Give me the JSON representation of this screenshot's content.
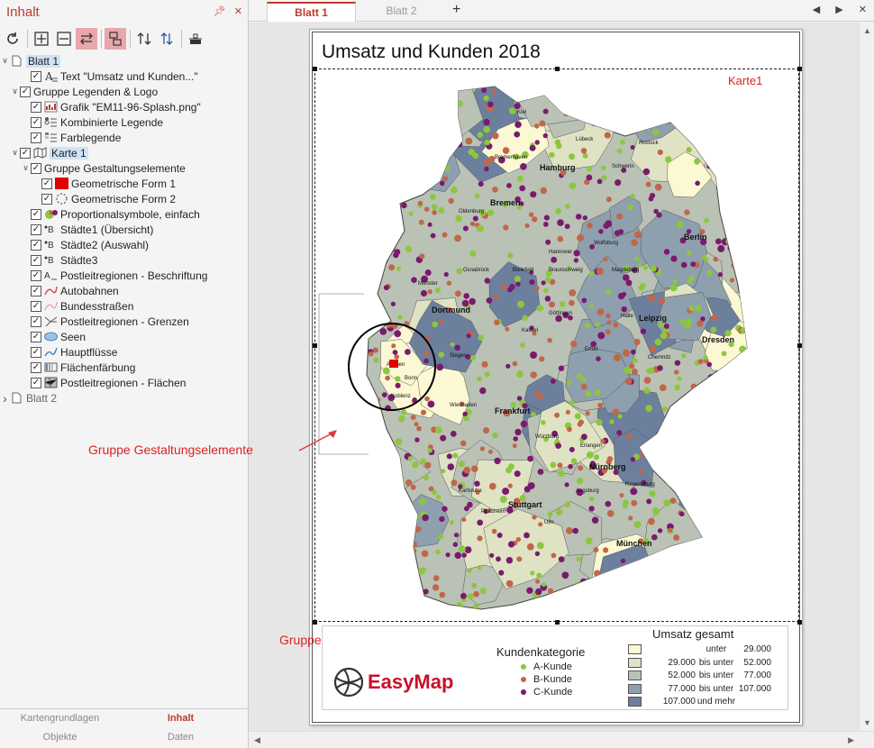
{
  "left_panel": {
    "title": "Inhalt",
    "pin_icon": "pin-icon",
    "close_icon": "close-icon",
    "tree": [
      {
        "label": "Blatt 1",
        "level": 0,
        "icon": "page-icon",
        "expanded": true,
        "selected": true
      },
      {
        "label": "Text \"Umsatz und Kunden...\"",
        "level": 2,
        "icon": "text-icon"
      },
      {
        "label": "Gruppe Legenden & Logo",
        "level": 1,
        "expanded": true
      },
      {
        "label": "Grafik \"EM11-96-Splash.png\"",
        "level": 2,
        "icon": "image-icon"
      },
      {
        "label": "Kombinierte Legende",
        "level": 2,
        "icon": "legend-icon"
      },
      {
        "label": "Farblegende",
        "level": 2,
        "icon": "color-legend-icon"
      },
      {
        "label": "Karte 1",
        "level": 1,
        "icon": "map-icon",
        "expanded": true,
        "selected": true
      },
      {
        "label": "Gruppe Gestaltungselemente",
        "level": 2,
        "expanded": true
      },
      {
        "label": "Geometrische Form 1",
        "level": 3,
        "icon": "red-rectangle-icon"
      },
      {
        "label": "Geometrische Form 2",
        "level": 3,
        "icon": "dashed-circle-icon"
      },
      {
        "label": "Proportionalsymbole, einfach",
        "level": 2,
        "icon": "pie-icon"
      },
      {
        "label": "Städte1 (Übersicht)",
        "level": 2,
        "icon": "city-label-icon"
      },
      {
        "label": "Städte2 (Auswahl)",
        "level": 2,
        "icon": "city-label-icon"
      },
      {
        "label": "Städte3",
        "level": 2,
        "icon": "city-label-icon"
      },
      {
        "label": "Postleitregionen - Beschriftung",
        "level": 2,
        "icon": "label-icon"
      },
      {
        "label": "Autobahnen",
        "level": 2,
        "icon": "highway-icon"
      },
      {
        "label": "Bundesstraßen",
        "level": 2,
        "icon": "road-icon"
      },
      {
        "label": "Postleitregionen - Grenzen",
        "level": 2,
        "icon": "border-icon"
      },
      {
        "label": "Seen",
        "level": 2,
        "icon": "lake-icon"
      },
      {
        "label": "Hauptflüsse",
        "level": 2,
        "icon": "river-icon"
      },
      {
        "label": "Flächenfärbung",
        "level": 2,
        "icon": "area-color-icon"
      },
      {
        "label": "Postleitregionen - Flächen",
        "level": 2,
        "icon": "area-icon"
      },
      {
        "label": "Blatt 2",
        "level": 0,
        "icon": "page-icon",
        "expanded": false
      }
    ],
    "bottom_tabs": [
      {
        "label": "Kartengrundlagen",
        "active": false
      },
      {
        "label": "Inhalt",
        "active": true
      },
      {
        "label": "Objekte",
        "active": false
      },
      {
        "label": "Daten",
        "active": false
      }
    ]
  },
  "sheet_tabs": [
    {
      "label": "Blatt 1",
      "active": true
    },
    {
      "label": "Blatt 2",
      "active": false
    }
  ],
  "add_tab": "+",
  "tab_nav": {
    "prev": "◀",
    "next": "▶",
    "close": "✕"
  },
  "map": {
    "title": "Umsatz und Kunden 2018",
    "map_label": "Karte1",
    "cities": [
      {
        "name": "Hamburg"
      },
      {
        "name": "Bremen"
      },
      {
        "name": "Berlin"
      },
      {
        "name": "Dortmund"
      },
      {
        "name": "Leipzig"
      },
      {
        "name": "Dresden"
      },
      {
        "name": "Frankfurt"
      },
      {
        "name": "Nürnberg"
      },
      {
        "name": "Stuttgart"
      },
      {
        "name": "München"
      },
      {
        "name": "Rostock"
      },
      {
        "name": "Münster"
      },
      {
        "name": "Kiel"
      },
      {
        "name": "Bremerhaven"
      },
      {
        "name": "Oldenburg"
      },
      {
        "name": "Osnabrück"
      },
      {
        "name": "Bielefeld"
      },
      {
        "name": "Hannover"
      },
      {
        "name": "Braunschweig"
      },
      {
        "name": "Magdeburg"
      },
      {
        "name": "Göttingen"
      },
      {
        "name": "Kassel"
      },
      {
        "name": "Halle"
      },
      {
        "name": "Erfurt"
      },
      {
        "name": "Chemnitz"
      },
      {
        "name": "Siegen"
      },
      {
        "name": "Würzburg"
      },
      {
        "name": "Erlangen"
      },
      {
        "name": "Regensburg"
      },
      {
        "name": "Pforzheim"
      },
      {
        "name": "Aachen"
      },
      {
        "name": "Bonn"
      },
      {
        "name": "Koblenz"
      },
      {
        "name": "Wiesbaden"
      },
      {
        "name": "Karlsruhe"
      },
      {
        "name": "Ulm"
      },
      {
        "name": "Augsburg"
      },
      {
        "name": "Wolfsburg"
      },
      {
        "name": "Schwerin"
      },
      {
        "name": "Lübeck"
      }
    ]
  },
  "annotations": {
    "gestaltung": "Gruppe Gestaltungselemente",
    "legenden": "Gruppe Legenden & Logo"
  },
  "legend_kunden": {
    "title": "Kundenkategorie",
    "items": [
      {
        "label": "A-Kunde",
        "color": "#8dc63f"
      },
      {
        "label": "B-Kunde",
        "color": "#c0674a"
      },
      {
        "label": "C-Kunde",
        "color": "#7a1a6e"
      }
    ]
  },
  "legend_umsatz": {
    "title": "Umsatz gesamt",
    "rows": [
      {
        "from": "",
        "mid": "unter",
        "to": "29.000",
        "color": "#fbf8d3"
      },
      {
        "from": "29.000",
        "mid": "bis unter",
        "to": "52.000",
        "color": "#dfe3c3"
      },
      {
        "from": "52.000",
        "mid": "bis unter",
        "to": "77.000",
        "color": "#b9c2b5"
      },
      {
        "from": "77.000",
        "mid": "bis unter",
        "to": "107.000",
        "color": "#8e9fae"
      },
      {
        "from": "107.000",
        "mid": "und mehr",
        "to": "",
        "color": "#6c7f9d"
      }
    ]
  },
  "logo": {
    "text": "EasyMap"
  }
}
